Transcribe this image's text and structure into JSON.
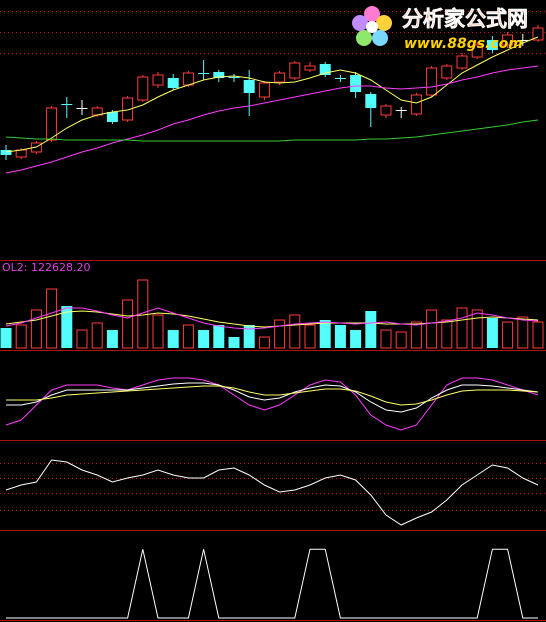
{
  "chart_data": [
    {
      "type": "candlestick",
      "up_color": "#ff3c3c",
      "down_color": "#54fcfc",
      "doji_color": "#ffffff",
      "open": [
        108,
        101,
        106,
        118,
        154,
        150,
        143,
        146,
        138,
        158,
        173,
        180,
        173,
        185,
        186,
        181,
        178,
        161,
        176,
        180,
        188,
        194,
        180,
        183,
        164,
        143,
        148,
        144,
        163,
        180,
        190,
        201,
        218,
        213,
        218,
        218
      ],
      "high": [
        113,
        110,
        117,
        152,
        161,
        158,
        152,
        148,
        162,
        183,
        186,
        184,
        187,
        198,
        188,
        184,
        188,
        177,
        187,
        197,
        196,
        196,
        183,
        186,
        166,
        154,
        151,
        165,
        192,
        194,
        205,
        216,
        222,
        226,
        224,
        233
      ],
      "low": [
        98,
        99,
        104,
        116,
        140,
        143,
        141,
        134,
        136,
        156,
        170,
        168,
        171,
        178,
        176,
        176,
        142,
        158,
        173,
        178,
        186,
        181,
        176,
        160,
        131,
        140,
        140,
        142,
        161,
        178,
        188,
        199,
        205,
        210,
        212,
        216
      ],
      "close": [
        103,
        108,
        115,
        150,
        153,
        150,
        150,
        136,
        160,
        181,
        183,
        170,
        185,
        184,
        180,
        180,
        165,
        175,
        185,
        195,
        192,
        183,
        179,
        166,
        150,
        152,
        148,
        163,
        190,
        192,
        202,
        213,
        208,
        223,
        218,
        230
      ],
      "ylim": [
        0,
        258
      ],
      "yticks": [
        205,
        226,
        247
      ],
      "grid": true,
      "series": [
        {
          "color": "#ffff66",
          "values": [
            106,
            108,
            111,
            120,
            130,
            138,
            143,
            146,
            148,
            153,
            161,
            168,
            173,
            178,
            181,
            182,
            180,
            176,
            175,
            176,
            180,
            185,
            188,
            185,
            178,
            168,
            158,
            155,
            161,
            173,
            185,
            193,
            201,
            208,
            215,
            221
          ]
        },
        {
          "color": "#ff3cff",
          "values": [
            85,
            88,
            92,
            96,
            101,
            106,
            110,
            115,
            119,
            123,
            128,
            134,
            138,
            143,
            147,
            150,
            152,
            155,
            158,
            161,
            164,
            167,
            170,
            172,
            172,
            170,
            169,
            170,
            171,
            174,
            178,
            181,
            185,
            188,
            190,
            192
          ]
        },
        {
          "color": "#33cc33",
          "values": [
            121,
            120,
            119,
            119,
            118,
            118,
            118,
            118,
            118,
            117,
            117,
            117,
            117,
            117,
            117,
            117,
            117,
            117,
            117,
            118,
            118,
            118,
            118,
            118,
            119,
            119,
            120,
            121,
            123,
            125,
            127,
            129,
            131,
            133,
            136,
            138
          ]
        }
      ]
    },
    {
      "type": "bar",
      "title": "OL2: 122628.20",
      "values": [
        20,
        23,
        38,
        59,
        42,
        18,
        25,
        18,
        48,
        68,
        33,
        18,
        23,
        18,
        23,
        11,
        23,
        11,
        28,
        33,
        23,
        28,
        23,
        18,
        37,
        18,
        16,
        26,
        38,
        28,
        40,
        38,
        30,
        26,
        31,
        26
      ],
      "ylim": [
        0,
        86
      ],
      "series": [
        {
          "color": "#ffff66",
          "values": [
            24,
            26,
            28,
            32,
            36,
            37,
            36,
            34,
            32,
            33,
            35,
            34,
            32,
            29,
            26,
            24,
            22,
            21,
            22,
            23,
            24,
            25,
            25,
            25,
            25,
            24,
            24,
            24,
            25,
            26,
            28,
            30,
            31,
            30,
            29,
            28
          ]
        },
        {
          "color": "#ff3cff",
          "values": [
            22,
            25,
            30,
            35,
            40,
            40,
            37,
            33,
            30,
            35,
            40,
            35,
            30,
            25,
            22,
            20,
            19,
            20,
            22,
            24,
            25,
            26,
            25,
            24,
            25,
            26,
            24,
            23,
            25,
            27,
            30,
            35,
            33,
            30,
            28,
            27
          ]
        }
      ]
    },
    {
      "type": "line",
      "ylim": [
        0,
        86
      ],
      "series": [
        {
          "color": "#ff3cff",
          "values": [
            13,
            18,
            33,
            48,
            53,
            53,
            53,
            50,
            48,
            53,
            58,
            60,
            60,
            58,
            53,
            43,
            33,
            28,
            33,
            43,
            53,
            58,
            56,
            43,
            23,
            13,
            8,
            13,
            33,
            53,
            60,
            60,
            58,
            53,
            48,
            43
          ]
        },
        {
          "color": "#ffffff",
          "values": [
            33,
            33,
            36,
            43,
            48,
            48,
            48,
            48,
            48,
            50,
            52,
            54,
            55,
            55,
            53,
            48,
            41,
            38,
            40,
            46,
            50,
            53,
            52,
            46,
            36,
            28,
            26,
            30,
            40,
            48,
            53,
            53,
            52,
            50,
            48,
            46
          ]
        },
        {
          "color": "#ffff66",
          "values": [
            38,
            38,
            38,
            40,
            43,
            44,
            45,
            46,
            47,
            48,
            49,
            50,
            51,
            52,
            52,
            50,
            46,
            43,
            43,
            45,
            47,
            49,
            49,
            47,
            42,
            36,
            33,
            34,
            38,
            43,
            47,
            48,
            48,
            48,
            47,
            46
          ]
        }
      ]
    },
    {
      "type": "line",
      "ylim": [
        0,
        86
      ],
      "yticks": [
        18,
        35,
        50,
        65
      ],
      "grid": true,
      "series": [
        {
          "color": "#ffffff",
          "values": [
            38,
            43,
            46,
            68,
            66,
            58,
            53,
            46,
            50,
            53,
            58,
            53,
            50,
            50,
            58,
            60,
            53,
            43,
            36,
            38,
            43,
            50,
            53,
            48,
            33,
            13,
            3,
            10,
            16,
            28,
            43,
            53,
            63,
            60,
            50,
            43
          ]
        }
      ]
    },
    {
      "type": "line",
      "ylim": [
        0,
        1.25
      ],
      "series": [
        {
          "color": "#ffffff",
          "values": [
            0,
            0,
            0,
            0,
            0,
            0,
            0,
            0,
            0,
            1,
            0,
            0,
            0,
            1,
            0,
            0,
            0,
            0,
            0,
            0,
            1,
            1,
            0,
            0,
            0,
            0,
            0,
            0,
            0,
            0,
            0,
            0,
            1,
            1,
            0,
            0
          ]
        }
      ]
    }
  ],
  "watermark": {
    "title": "分析家公式网",
    "url": "www.88gs.com"
  }
}
